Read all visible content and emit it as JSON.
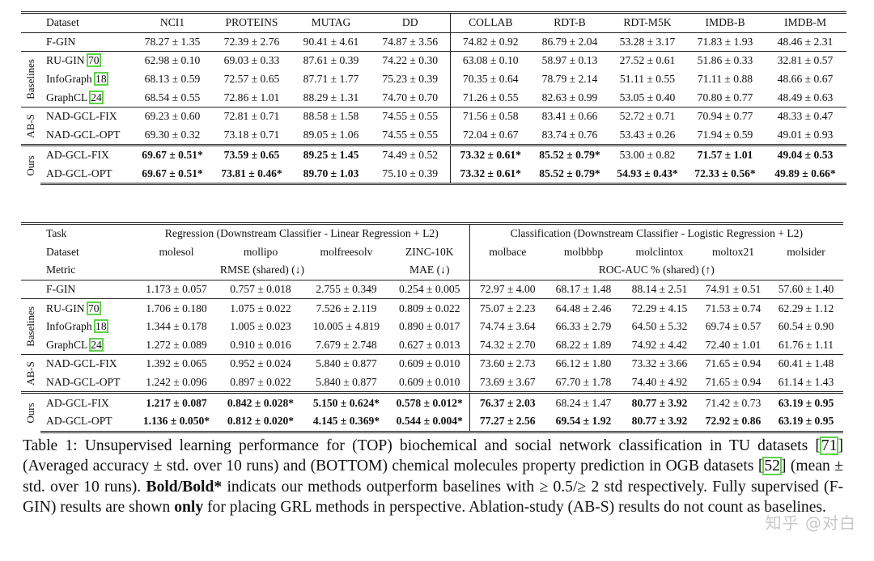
{
  "top_table": {
    "header": [
      "Dataset",
      "NCI1",
      "PROTEINS",
      "MUTAG",
      "DD",
      "COLLAB",
      "RDT-B",
      "RDT-M5K",
      "IMDB-B",
      "IMDB-M"
    ],
    "fgin": {
      "name": "F-GIN",
      "cells": [
        {
          "v": "78.27 ± 1.35"
        },
        {
          "v": "72.39 ± 2.76"
        },
        {
          "v": "90.41 ± 4.61"
        },
        {
          "v": "74.87 ± 3.56"
        },
        {
          "v": "74.82 ± 0.92"
        },
        {
          "v": "86.79 ± 2.04"
        },
        {
          "v": "53.28 ± 3.17"
        },
        {
          "v": "71.83 ± 1.93"
        },
        {
          "v": "48.46 ± 2.31"
        }
      ]
    },
    "groups": [
      {
        "label": "Baselines",
        "rows": [
          {
            "name": "RU-GIN ",
            "ref": "70",
            "cells": [
              {
                "v": "62.98 ± 0.10"
              },
              {
                "v": "69.03 ± 0.33"
              },
              {
                "v": "87.61 ± 0.39"
              },
              {
                "v": "74.22 ± 0.30"
              },
              {
                "v": "63.08 ± 0.10"
              },
              {
                "v": "58.97 ± 0.13"
              },
              {
                "v": "27.52 ± 0.61"
              },
              {
                "v": "51.86 ± 0.33"
              },
              {
                "v": "32.81 ± 0.57"
              }
            ]
          },
          {
            "name": "InfoGraph ",
            "ref": "18",
            "cells": [
              {
                "v": "68.13 ± 0.59"
              },
              {
                "v": "72.57 ± 0.65"
              },
              {
                "v": "87.71 ± 1.77"
              },
              {
                "v": "75.23 ± 0.39"
              },
              {
                "v": "70.35 ± 0.64"
              },
              {
                "v": "78.79 ± 2.14"
              },
              {
                "v": "51.11 ± 0.55"
              },
              {
                "v": "71.11 ± 0.88"
              },
              {
                "v": "48.66 ± 0.67"
              }
            ]
          },
          {
            "name": "GraphCL ",
            "ref": "24",
            "cells": [
              {
                "v": "68.54 ± 0.55"
              },
              {
                "v": "72.86 ± 1.01"
              },
              {
                "v": "88.29 ± 1.31"
              },
              {
                "v": "74.70 ± 0.70"
              },
              {
                "v": "71.26 ± 0.55"
              },
              {
                "v": "82.63 ± 0.99"
              },
              {
                "v": "53.05 ± 0.40"
              },
              {
                "v": "70.80 ± 0.77"
              },
              {
                "v": "48.49 ± 0.63"
              }
            ]
          }
        ]
      },
      {
        "label": "AB-S",
        "rows": [
          {
            "name": "NAD-GCL-FIX",
            "cells": [
              {
                "v": "69.23 ± 0.60"
              },
              {
                "v": "72.81 ± 0.71"
              },
              {
                "v": "88.58 ± 1.58"
              },
              {
                "v": "74.55 ± 0.55"
              },
              {
                "v": "71.56 ± 0.58"
              },
              {
                "v": "83.41 ± 0.66"
              },
              {
                "v": "52.72 ± 0.71"
              },
              {
                "v": "70.94 ± 0.77"
              },
              {
                "v": "48.33 ± 0.47"
              }
            ]
          },
          {
            "name": "NAD-GCL-OPT",
            "cells": [
              {
                "v": "69.30 ± 0.32"
              },
              {
                "v": "73.18 ± 0.71"
              },
              {
                "v": "89.05 ± 1.06"
              },
              {
                "v": "74.55 ± 0.55"
              },
              {
                "v": "72.04 ± 0.67"
              },
              {
                "v": "83.74 ± 0.76"
              },
              {
                "v": "53.43 ± 0.26"
              },
              {
                "v": "71.94 ± 0.59"
              },
              {
                "v": "49.01 ± 0.93"
              }
            ]
          }
        ]
      },
      {
        "label": "Ours",
        "rows": [
          {
            "name": "AD-GCL-FIX",
            "cells": [
              {
                "v": "69.67 ± 0.51*",
                "b": true
              },
              {
                "v": "73.59 ± 0.65",
                "b": true
              },
              {
                "v": "89.25 ± 1.45",
                "b": true
              },
              {
                "v": "74.49 ± 0.52"
              },
              {
                "v": "73.32 ± 0.61*",
                "b": true
              },
              {
                "v": "85.52 ± 0.79*",
                "b": true
              },
              {
                "v": "53.00 ± 0.82"
              },
              {
                "v": "71.57 ± 1.01",
                "b": true
              },
              {
                "v": "49.04 ± 0.53",
                "b": true
              }
            ]
          },
          {
            "name": "AD-GCL-OPT",
            "cells": [
              {
                "v": "69.67 ± 0.51*",
                "b": true
              },
              {
                "v": "73.81 ± 0.46*",
                "b": true
              },
              {
                "v": "89.70 ± 1.03",
                "b": true
              },
              {
                "v": "75.10 ± 0.39"
              },
              {
                "v": "73.32 ± 0.61*",
                "b": true
              },
              {
                "v": "85.52 ± 0.79*",
                "b": true
              },
              {
                "v": "54.93 ± 0.43*",
                "b": true
              },
              {
                "v": "72.33 ± 0.56*",
                "b": true
              },
              {
                "v": "49.89 ± 0.66*",
                "b": true
              }
            ]
          }
        ]
      }
    ]
  },
  "bottom_table": {
    "task_label": "Task",
    "regression_header": "Regression (Downstream Classifier - Linear Regression + L2)",
    "classification_header": "Classification (Downstream Classifier - Logistic Regression + L2)",
    "dataset_label": "Dataset",
    "datasets": [
      "molesol",
      "mollipo",
      "molfreesolv",
      "ZINC-10K",
      "molbace",
      "molbbbp",
      "molclintox",
      "moltox21",
      "molsider"
    ],
    "metric_label": "Metric",
    "metric_rmse": "RMSE (shared) (↓)",
    "metric_mae": "MAE (↓)",
    "metric_roc": "ROC-AUC % (shared) (↑)",
    "fgin": {
      "name": "F-GIN",
      "cells": [
        {
          "v": "1.173 ± 0.057"
        },
        {
          "v": "0.757 ± 0.018"
        },
        {
          "v": "2.755 ± 0.349"
        },
        {
          "v": "0.254 ± 0.005"
        },
        {
          "v": "72.97 ± 4.00"
        },
        {
          "v": "68.17 ± 1.48"
        },
        {
          "v": "88.14 ± 2.51"
        },
        {
          "v": "74.91 ± 0.51"
        },
        {
          "v": "57.60 ± 1.40"
        }
      ]
    },
    "groups": [
      {
        "label": "Baselines",
        "rows": [
          {
            "name": "RU-GIN ",
            "ref": "70",
            "cells": [
              {
                "v": "1.706 ± 0.180"
              },
              {
                "v": "1.075 ± 0.022"
              },
              {
                "v": "7.526 ± 2.119"
              },
              {
                "v": "0.809 ± 0.022"
              },
              {
                "v": "75.07 ± 2.23"
              },
              {
                "v": "64.48 ± 2.46"
              },
              {
                "v": "72.29 ± 4.15"
              },
              {
                "v": "71.53 ± 0.74"
              },
              {
                "v": "62.29 ± 1.12"
              }
            ]
          },
          {
            "name": "InfoGraph ",
            "ref": "18",
            "cells": [
              {
                "v": "1.344 ± 0.178"
              },
              {
                "v": "1.005 ± 0.023"
              },
              {
                "v": "10.005 ± 4.819"
              },
              {
                "v": "0.890 ± 0.017"
              },
              {
                "v": "74.74 ± 3.64"
              },
              {
                "v": "66.33 ± 2.79"
              },
              {
                "v": "64.50 ± 5.32"
              },
              {
                "v": "69.74 ± 0.57"
              },
              {
                "v": "60.54 ± 0.90"
              }
            ]
          },
          {
            "name": "GraphCL ",
            "ref": "24",
            "cells": [
              {
                "v": "1.272 ± 0.089"
              },
              {
                "v": "0.910 ± 0.016"
              },
              {
                "v": "7.679 ± 2.748"
              },
              {
                "v": "0.627 ± 0.013"
              },
              {
                "v": "74.32 ± 2.70"
              },
              {
                "v": "68.22 ± 1.89"
              },
              {
                "v": "74.92 ± 4.42"
              },
              {
                "v": "72.40 ± 1.01"
              },
              {
                "v": "61.76 ± 1.11"
              }
            ]
          }
        ]
      },
      {
        "label": "AB-S",
        "rows": [
          {
            "name": "NAD-GCL-FIX",
            "cells": [
              {
                "v": "1.392 ± 0.065"
              },
              {
                "v": "0.952 ± 0.024"
              },
              {
                "v": "5.840 ± 0.877"
              },
              {
                "v": "0.609 ± 0.010"
              },
              {
                "v": "73.60 ± 2.73"
              },
              {
                "v": "66.12 ± 1.80"
              },
              {
                "v": "73.32 ± 3.66"
              },
              {
                "v": "71.65 ± 0.94"
              },
              {
                "v": "60.41 ± 1.48"
              }
            ]
          },
          {
            "name": "NAD-GCL-OPT",
            "cells": [
              {
                "v": "1.242 ± 0.096"
              },
              {
                "v": "0.897 ± 0.022"
              },
              {
                "v": "5.840 ± 0.877"
              },
              {
                "v": "0.609 ± 0.010"
              },
              {
                "v": "73.69 ± 3.67"
              },
              {
                "v": "67.70 ± 1.78"
              },
              {
                "v": "74.40 ± 4.92"
              },
              {
                "v": "71.65 ± 0.94"
              },
              {
                "v": "61.14 ± 1.43"
              }
            ]
          }
        ]
      },
      {
        "label": "Ours",
        "rows": [
          {
            "name": "AD-GCL-FIX",
            "cells": [
              {
                "v": "1.217 ± 0.087",
                "b": true
              },
              {
                "v": "0.842 ± 0.028*",
                "b": true
              },
              {
                "v": "5.150 ± 0.624*",
                "b": true
              },
              {
                "v": "0.578 ± 0.012*",
                "b": true
              },
              {
                "v": "76.37 ± 2.03",
                "b": true
              },
              {
                "v": "68.24 ± 1.47"
              },
              {
                "v": "80.77 ± 3.92",
                "b": true
              },
              {
                "v": "71.42 ± 0.73"
              },
              {
                "v": "63.19 ± 0.95",
                "b": true
              }
            ]
          },
          {
            "name": "AD-GCL-OPT",
            "cells": [
              {
                "v": "1.136 ± 0.050*",
                "b": true
              },
              {
                "v": "0.812 ± 0.020*",
                "b": true
              },
              {
                "v": "4.145 ± 0.369*",
                "b": true
              },
              {
                "v": "0.544 ± 0.004*",
                "b": true
              },
              {
                "v": "77.27 ± 2.56",
                "b": true
              },
              {
                "v": "69.54 ± 1.92",
                "b": true
              },
              {
                "v": "80.77 ± 3.92",
                "b": true
              },
              {
                "v": "72.92 ± 0.86",
                "b": true
              },
              {
                "v": "63.19 ± 0.95",
                "b": true
              }
            ]
          }
        ]
      }
    ]
  },
  "caption": {
    "p1": "Table 1: Unsupervised learning performance for (TOP) biochemical and social network classification in TU datasets [",
    "ref1": "71",
    "p2": "] (Averaged accuracy ± std. over 10 runs) and (BOTTOM) chemical molecules property prediction in OGB datasets [",
    "ref2": "52",
    "p3": "] (mean ± std. over 10 runs). ",
    "bold1": "Bold/Bold*",
    "p4": " indicats our methods outperform baselines with ≥ 0.5/≥ 2 std respectively. Fully supervised (F-GIN) results are shown ",
    "bold2": "only",
    "p5": " for placing GRL methods in perspective. Ablation-study (AB-S) results do not count as baselines."
  },
  "watermark": "知乎 @对白"
}
